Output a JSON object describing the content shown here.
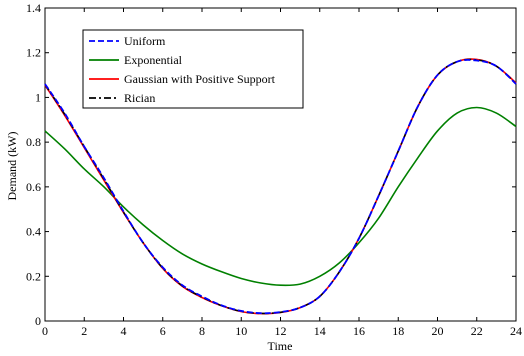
{
  "chart_data": {
    "type": "line",
    "xlabel": "Time",
    "ylabel": "Demand (kW)",
    "xlim": [
      0,
      24
    ],
    "ylim": [
      0,
      1.4
    ],
    "xticks": [
      0,
      2,
      4,
      6,
      8,
      10,
      12,
      14,
      16,
      18,
      20,
      22,
      24
    ],
    "yticks": [
      0,
      0.2,
      0.4,
      0.6,
      0.8,
      1,
      1.2,
      1.4
    ],
    "xtick_labels": [
      "0",
      "2",
      "4",
      "6",
      "8",
      "10",
      "12",
      "14",
      "16",
      "18",
      "20",
      "22",
      "24"
    ],
    "ytick_labels": [
      "0",
      "0.2",
      "0.4",
      "0.6",
      "0.8",
      "1",
      "1.2",
      "1.4"
    ],
    "grid": false,
    "legend_position": "top-left",
    "x": [
      0,
      1,
      2,
      3,
      4,
      5,
      6,
      7,
      8,
      9,
      10,
      11,
      12,
      13,
      14,
      15,
      16,
      17,
      18,
      19,
      20,
      21,
      22,
      23,
      24
    ],
    "series": [
      {
        "name": "Uniform",
        "color": "#0000ff",
        "dash": "dashed",
        "values": [
          1.06,
          0.93,
          0.78,
          0.64,
          0.49,
          0.35,
          0.24,
          0.16,
          0.11,
          0.07,
          0.045,
          0.035,
          0.04,
          0.06,
          0.11,
          0.22,
          0.37,
          0.56,
          0.76,
          0.96,
          1.1,
          1.16,
          1.165,
          1.14,
          1.06
        ]
      },
      {
        "name": "Exponential",
        "color": "#008000",
        "dash": "solid",
        "values": [
          0.85,
          0.77,
          0.68,
          0.6,
          0.51,
          0.43,
          0.36,
          0.3,
          0.255,
          0.22,
          0.19,
          0.17,
          0.16,
          0.165,
          0.2,
          0.26,
          0.35,
          0.46,
          0.6,
          0.73,
          0.85,
          0.93,
          0.955,
          0.93,
          0.87
        ]
      },
      {
        "name": "Gaussian with Positive Support",
        "color": "#ff0000",
        "dash": "solid",
        "values": [
          1.055,
          0.92,
          0.775,
          0.63,
          0.485,
          0.35,
          0.235,
          0.155,
          0.105,
          0.068,
          0.042,
          0.033,
          0.038,
          0.06,
          0.11,
          0.22,
          0.37,
          0.56,
          0.76,
          0.96,
          1.1,
          1.16,
          1.17,
          1.14,
          1.065
        ]
      },
      {
        "name": "Rician",
        "color": "#000000",
        "dash": "dashdot",
        "values": [
          1.058,
          0.925,
          0.78,
          0.635,
          0.487,
          0.35,
          0.237,
          0.157,
          0.107,
          0.069,
          0.043,
          0.034,
          0.039,
          0.06,
          0.11,
          0.22,
          0.37,
          0.56,
          0.76,
          0.96,
          1.1,
          1.16,
          1.168,
          1.14,
          1.062
        ]
      }
    ]
  }
}
